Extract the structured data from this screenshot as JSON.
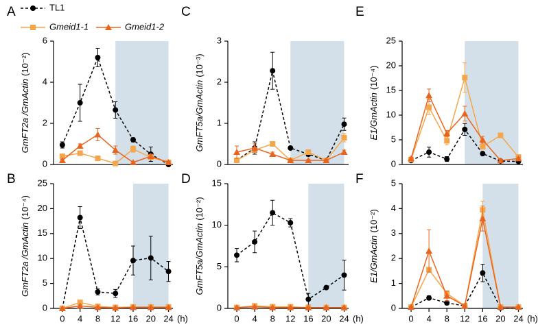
{
  "legend": [
    {
      "name": "TL1",
      "color": "#000000",
      "marker": "circle",
      "dashed": true
    },
    {
      "name": "Gmeid1-1",
      "color": "#f5a64a",
      "marker": "square",
      "dashed": false
    },
    {
      "name": "Gmeid1-2",
      "color": "#e8651f",
      "marker": "triangle",
      "dashed": false
    }
  ],
  "chart_data": [
    {
      "type": "line",
      "panel": "A",
      "ylabel": "GmFT2a /GmActin",
      "yunit": "(10⁻²)",
      "x": [
        0,
        4,
        8,
        12,
        16,
        20,
        24
      ],
      "xlim": [
        -2,
        25
      ],
      "ylim": [
        0,
        6
      ],
      "yticks": [
        0,
        2,
        4,
        6
      ],
      "shade": [
        12,
        24
      ],
      "series": [
        {
          "values": [
            0.95,
            3.0,
            5.2,
            2.65,
            1.2,
            0.5,
            0.0
          ],
          "errors": [
            0.15,
            0.9,
            0.45,
            0.4,
            0.1,
            0.35,
            0.05
          ]
        },
        {
          "values": [
            0.4,
            0.55,
            0.3,
            0.05,
            0.75,
            0.35,
            0.1
          ],
          "errors": [
            0.05,
            0.05,
            0.05,
            0.02,
            0.15,
            0.1,
            0.05
          ]
        },
        {
          "values": [
            0.2,
            0.9,
            1.45,
            0.7,
            0.1,
            0.4,
            0.1
          ],
          "errors": [
            0.05,
            0.1,
            0.3,
            0.2,
            0.05,
            0.1,
            0.05
          ]
        }
      ]
    },
    {
      "type": "line",
      "panel": "B",
      "ylabel": "GmFT2a /GmActin",
      "yunit": "(10⁻⁴)",
      "x": [
        0,
        4,
        8,
        12,
        16,
        20,
        24
      ],
      "xlim": [
        -2,
        25
      ],
      "ylim": [
        0,
        25
      ],
      "yticks": [
        0,
        5,
        10,
        15,
        20,
        25
      ],
      "xticks": [
        0,
        4,
        8,
        12,
        16,
        20,
        24
      ],
      "xlabel": "(h)",
      "shade": [
        16,
        24
      ],
      "series": [
        {
          "values": [
            0,
            18.2,
            3.3,
            3.0,
            9.6,
            10.1,
            7.4
          ],
          "errors": [
            0.2,
            2.2,
            0.6,
            0.8,
            2.9,
            4.4,
            2.0
          ]
        },
        {
          "values": [
            0,
            1.2,
            0.4,
            0.2,
            0.3,
            0.3,
            0.3
          ],
          "errors": [
            0.1,
            0.4,
            0.1,
            0.1,
            0.1,
            0.1,
            0.1
          ]
        },
        {
          "values": [
            0,
            0.5,
            0.2,
            0.1,
            0.2,
            0.2,
            0.2
          ],
          "errors": [
            0.1,
            0.2,
            0.1,
            0.1,
            0.1,
            0.1,
            0.1
          ]
        }
      ]
    },
    {
      "type": "line",
      "panel": "C",
      "ylabel": "GmFT5a/GmActin",
      "yunit": "(10⁻³)",
      "x": [
        0,
        4,
        8,
        12,
        16,
        20,
        24
      ],
      "xlim": [
        -2,
        25
      ],
      "ylim": [
        0,
        3
      ],
      "yticks": [
        0,
        1,
        2,
        3
      ],
      "shade": [
        12,
        24
      ],
      "series": [
        {
          "values": [
            0.1,
            0.4,
            2.28,
            0.4,
            0.25,
            0.1,
            0.98
          ],
          "errors": [
            0.05,
            0.15,
            0.45,
            0.02,
            0.05,
            0.02,
            0.15
          ]
        },
        {
          "values": [
            0.1,
            0.35,
            0.5,
            0.1,
            0.3,
            0.1,
            0.65
          ],
          "errors": [
            0.05,
            0.05,
            0.05,
            0.02,
            0.05,
            0.02,
            0.1
          ]
        },
        {
          "values": [
            0.3,
            0.4,
            0.25,
            0.1,
            0.1,
            0.1,
            0.3
          ],
          "errors": [
            0.15,
            0.1,
            0.05,
            0.02,
            0.02,
            0.02,
            0.05
          ]
        }
      ]
    },
    {
      "type": "line",
      "panel": "D",
      "ylabel": "GmFT5a/GmActin",
      "yunit": "(10⁻²)",
      "x": [
        0,
        4,
        8,
        12,
        16,
        20,
        24
      ],
      "xlim": [
        -2,
        25
      ],
      "ylim": [
        0,
        15
      ],
      "yticks": [
        0,
        5,
        10,
        15
      ],
      "xticks": [
        0,
        4,
        8,
        12,
        16,
        20,
        24
      ],
      "xlabel": "(h)",
      "shade": [
        16,
        24
      ],
      "series": [
        {
          "values": [
            6.4,
            8.0,
            11.5,
            10.3,
            1.1,
            2.5,
            4.0
          ],
          "errors": [
            0.8,
            1.3,
            1.5,
            0.5,
            0.7,
            0.2,
            1.8
          ]
        },
        {
          "values": [
            0.1,
            0.3,
            0.2,
            0.2,
            0.1,
            0.1,
            0.1
          ],
          "errors": [
            0.05,
            0.1,
            0.05,
            0.05,
            0.05,
            0.05,
            0.05
          ]
        },
        {
          "values": [
            0.1,
            0.2,
            0.1,
            0.1,
            0.1,
            0.1,
            0.1
          ],
          "errors": [
            0.05,
            0.05,
            0.05,
            0.05,
            0.05,
            0.05,
            0.05
          ]
        }
      ]
    },
    {
      "type": "line",
      "panel": "E",
      "ylabel": "E1/GmActin",
      "yunit": "(10⁻⁴)",
      "x": [
        0,
        4,
        8,
        12,
        16,
        20,
        24
      ],
      "xlim": [
        -2,
        25
      ],
      "ylim": [
        0,
        25
      ],
      "yticks": [
        0,
        5,
        10,
        15,
        20,
        25
      ],
      "shade": [
        12,
        24
      ],
      "series": [
        {
          "values": [
            0.8,
            2.5,
            1.1,
            7.1,
            2.2,
            0.7,
            0.6
          ],
          "errors": [
            0.3,
            1.0,
            0.5,
            1.2,
            0.3,
            0.2,
            0.3
          ]
        },
        {
          "values": [
            1.0,
            11.6,
            4.8,
            17.6,
            3.6,
            5.9,
            1.5
          ],
          "errors": [
            0.3,
            1.5,
            0.8,
            3.0,
            0.5,
            0.4,
            0.5
          ]
        },
        {
          "values": [
            1.2,
            14.0,
            6.3,
            10.3,
            5.0,
            0.8,
            1.2
          ],
          "errors": [
            0.3,
            1.3,
            0.6,
            1.5,
            0.7,
            0.2,
            0.3
          ]
        }
      ]
    },
    {
      "type": "line",
      "panel": "F",
      "ylabel": "E1/GmActin",
      "yunit": "(10⁻²)",
      "x": [
        0,
        4,
        8,
        12,
        16,
        20,
        24
      ],
      "xlim": [
        -2,
        25
      ],
      "ylim": [
        0,
        5
      ],
      "yticks": [
        0,
        1,
        2,
        3,
        4,
        5
      ],
      "xticks": [
        0,
        4,
        8,
        12,
        16,
        20,
        24
      ],
      "xlabel": "(h)",
      "shade": [
        16,
        24
      ],
      "series": [
        {
          "values": [
            0.05,
            0.42,
            0.22,
            0.1,
            1.42,
            0.02,
            0.05
          ],
          "errors": [
            0.02,
            0.08,
            0.08,
            0.05,
            0.35,
            0.02,
            0.02
          ]
        },
        {
          "values": [
            0.05,
            1.55,
            0.6,
            0.1,
            3.95,
            0.05,
            0.05
          ],
          "errors": [
            0.02,
            0.05,
            0.1,
            0.05,
            0.35,
            0.02,
            0.02
          ]
        },
        {
          "values": [
            0.05,
            2.3,
            0.5,
            0.1,
            3.6,
            0.05,
            0.05
          ],
          "errors": [
            0.02,
            0.85,
            0.2,
            0.05,
            0.5,
            0.02,
            0.02
          ]
        }
      ]
    }
  ]
}
